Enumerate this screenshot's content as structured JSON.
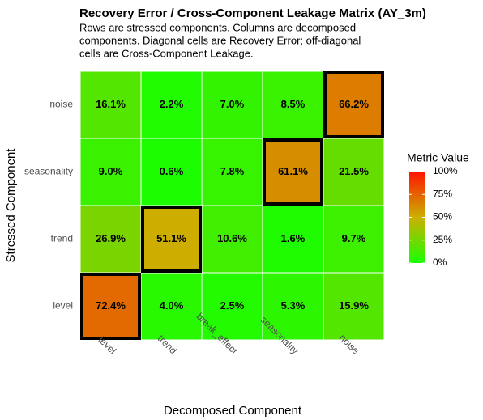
{
  "chart_data": {
    "type": "heatmap",
    "title": "Recovery Error / Cross-Component Leakage Matrix (AY_3m)",
    "subtitle": [
      "Rows are stressed components. Columns are decomposed",
      "components. Diagonal cells are Recovery Error; off-diagonal",
      "cells are Cross-Component Leakage."
    ],
    "x_label": "Decomposed Component",
    "y_label": "Stressed Component",
    "x_categories": [
      "level",
      "trend",
      "break_effect",
      "seasonality",
      "noise"
    ],
    "y_categories": [
      "level",
      "trend",
      "seasonality",
      "noise"
    ],
    "values": [
      [
        72.4,
        4.0,
        2.5,
        5.3,
        15.9
      ],
      [
        26.9,
        51.1,
        10.6,
        1.6,
        9.7
      ],
      [
        9.0,
        0.6,
        7.8,
        61.1,
        21.5
      ],
      [
        16.1,
        2.2,
        7.0,
        8.5,
        66.2
      ]
    ],
    "value_labels": [
      [
        "72.4%",
        "4.0%",
        "2.5%",
        "5.3%",
        "15.9%"
      ],
      [
        "26.9%",
        "51.1%",
        "10.6%",
        "1.6%",
        "9.7%"
      ],
      [
        "9.0%",
        "0.6%",
        "7.8%",
        "61.1%",
        "21.5%"
      ],
      [
        "16.1%",
        "2.2%",
        "7.0%",
        "8.5%",
        "66.2%"
      ]
    ],
    "colorbar": {
      "title": "Metric Value",
      "lim": [
        0,
        100
      ],
      "ticks": [
        {
          "value": 0,
          "label": "0%"
        },
        {
          "value": 25,
          "label": "25%"
        },
        {
          "value": 50,
          "label": "50%"
        },
        {
          "value": 75,
          "label": "75%"
        },
        {
          "value": 100,
          "label": "100%"
        }
      ],
      "colors": [
        "#1aff00",
        "#cbb000",
        "#ff1400"
      ]
    },
    "highlight_diagonal": true,
    "highlight_color": "#000000"
  }
}
